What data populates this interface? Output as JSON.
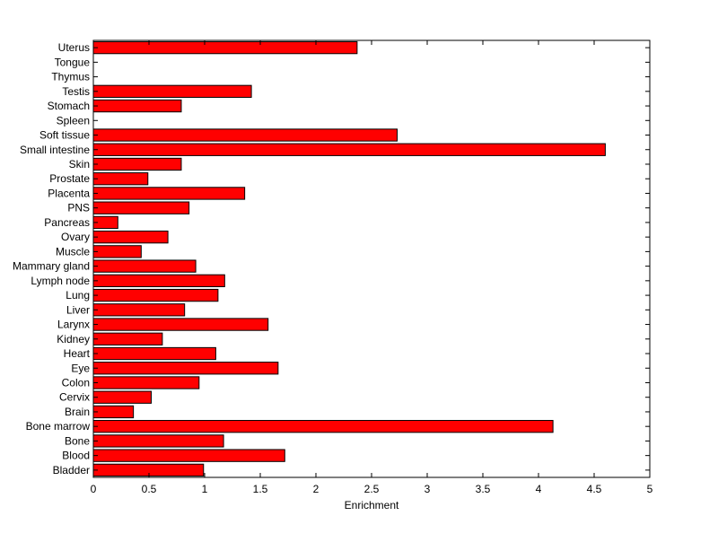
{
  "chart_data": {
    "type": "bar",
    "orientation": "horizontal",
    "xlabel": "Enrichment",
    "ylabel": "",
    "xlim": [
      0,
      5
    ],
    "xticks": [
      "0",
      "0.5",
      "1",
      "1.5",
      "2",
      "2.5",
      "3",
      "3.5",
      "4",
      "4.5",
      "5"
    ],
    "xtick_values": [
      0,
      0.5,
      1,
      1.5,
      2,
      2.5,
      3,
      3.5,
      4,
      4.5,
      5
    ],
    "categories": [
      "Bladder",
      "Blood",
      "Bone",
      "Bone marrow",
      "Brain",
      "Cervix",
      "Colon",
      "Eye",
      "Heart",
      "Kidney",
      "Larynx",
      "Liver",
      "Lung",
      "Lymph node",
      "Mammary gland",
      "Muscle",
      "Ovary",
      "Pancreas",
      "PNS",
      "Placenta",
      "Prostate",
      "Skin",
      "Small intestine",
      "Soft tissue",
      "Spleen",
      "Stomach",
      "Testis",
      "Thymus",
      "Tongue",
      "Uterus"
    ],
    "values": [
      0.99,
      1.72,
      1.17,
      4.13,
      0.36,
      0.52,
      0.95,
      1.66,
      1.1,
      0.62,
      1.57,
      0.82,
      1.12,
      1.18,
      0.92,
      0.43,
      0.67,
      0.22,
      0.86,
      1.36,
      0.49,
      0.79,
      4.6,
      2.73,
      0,
      0.79,
      1.42,
      0,
      0,
      2.37
    ],
    "bar_color": "#ff0000",
    "grid": false,
    "legend": false
  }
}
